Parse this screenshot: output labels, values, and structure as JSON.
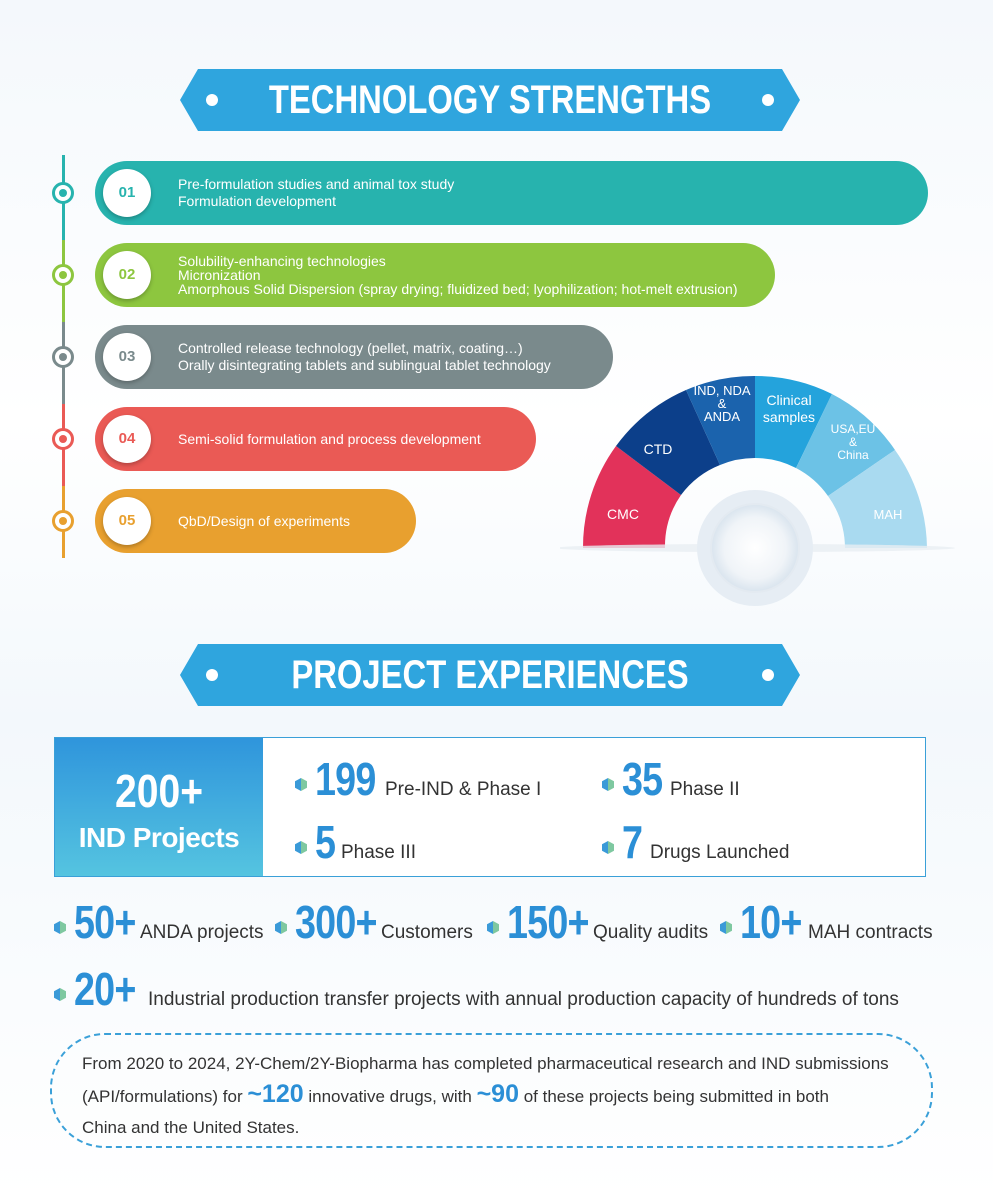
{
  "section1": {
    "title": "TECHNOLOGY STRENGTHS"
  },
  "timeline": [
    {
      "num": "01",
      "lines": [
        "Pre-formulation studies and animal tox study",
        "Formulation development"
      ],
      "color": "#27b3ae"
    },
    {
      "num": "02",
      "lines": [
        "Solubility-enhancing technologies",
        "Micronization",
        "Amorphous Solid Dispersion (spray drying; fluidized bed; lyophilization; hot-melt extrusion)"
      ],
      "color": "#8dc63f"
    },
    {
      "num": "03",
      "lines": [
        "Controlled release technology (pellet, matrix, coating…)",
        "Orally disintegrating tablets and sublingual tablet technology"
      ],
      "color": "#7a8a8c"
    },
    {
      "num": "04",
      "lines": [
        "Semi-solid formulation and process development"
      ],
      "color": "#ea5a55"
    },
    {
      "num": "05",
      "lines": [
        "QbD/Design of experiments"
      ],
      "color": "#e8a02f"
    }
  ],
  "semicircle": {
    "cmc": "CMC",
    "ctd": "CTD",
    "ind": [
      "IND, NDA",
      "&",
      "ANDA"
    ],
    "clinical": [
      "Clinical",
      "samples"
    ],
    "usa": [
      "USA,EU",
      "&",
      "China"
    ],
    "mah": "MAH"
  },
  "section2": {
    "title": "PROJECT EXPERIENCES"
  },
  "ind_box": {
    "big": "200+",
    "label": "IND Projects",
    "stats": [
      {
        "num": "199",
        "label": "Pre-IND & Phase I"
      },
      {
        "num": "35",
        "label": "Phase II"
      },
      {
        "num": "5",
        "label": "Phase III"
      },
      {
        "num": "7",
        "label": "Drugs Launched"
      }
    ]
  },
  "row_stats": [
    {
      "num": "50+",
      "label": "ANDA projects"
    },
    {
      "num": "300+",
      "label": "Customers"
    },
    {
      "num": "150+",
      "label": "Quality audits"
    },
    {
      "num": "10+",
      "label": "MAH contracts"
    }
  ],
  "transfer": {
    "num": "20+",
    "label": "Industrial production transfer projects with annual production capacity of hundreds of tons"
  },
  "summary": {
    "p1": "From 2020 to 2024, 2Y-Chem/2Y-Biopharma has completed pharmaceutical research and IND submissions",
    "p2a": "(API/formulations) for ",
    "n1": "~120",
    "p2b": " innovative drugs, with ",
    "n2": "~90",
    "p2c": " of these projects being submitted in both",
    "p3": "China and the United States."
  }
}
